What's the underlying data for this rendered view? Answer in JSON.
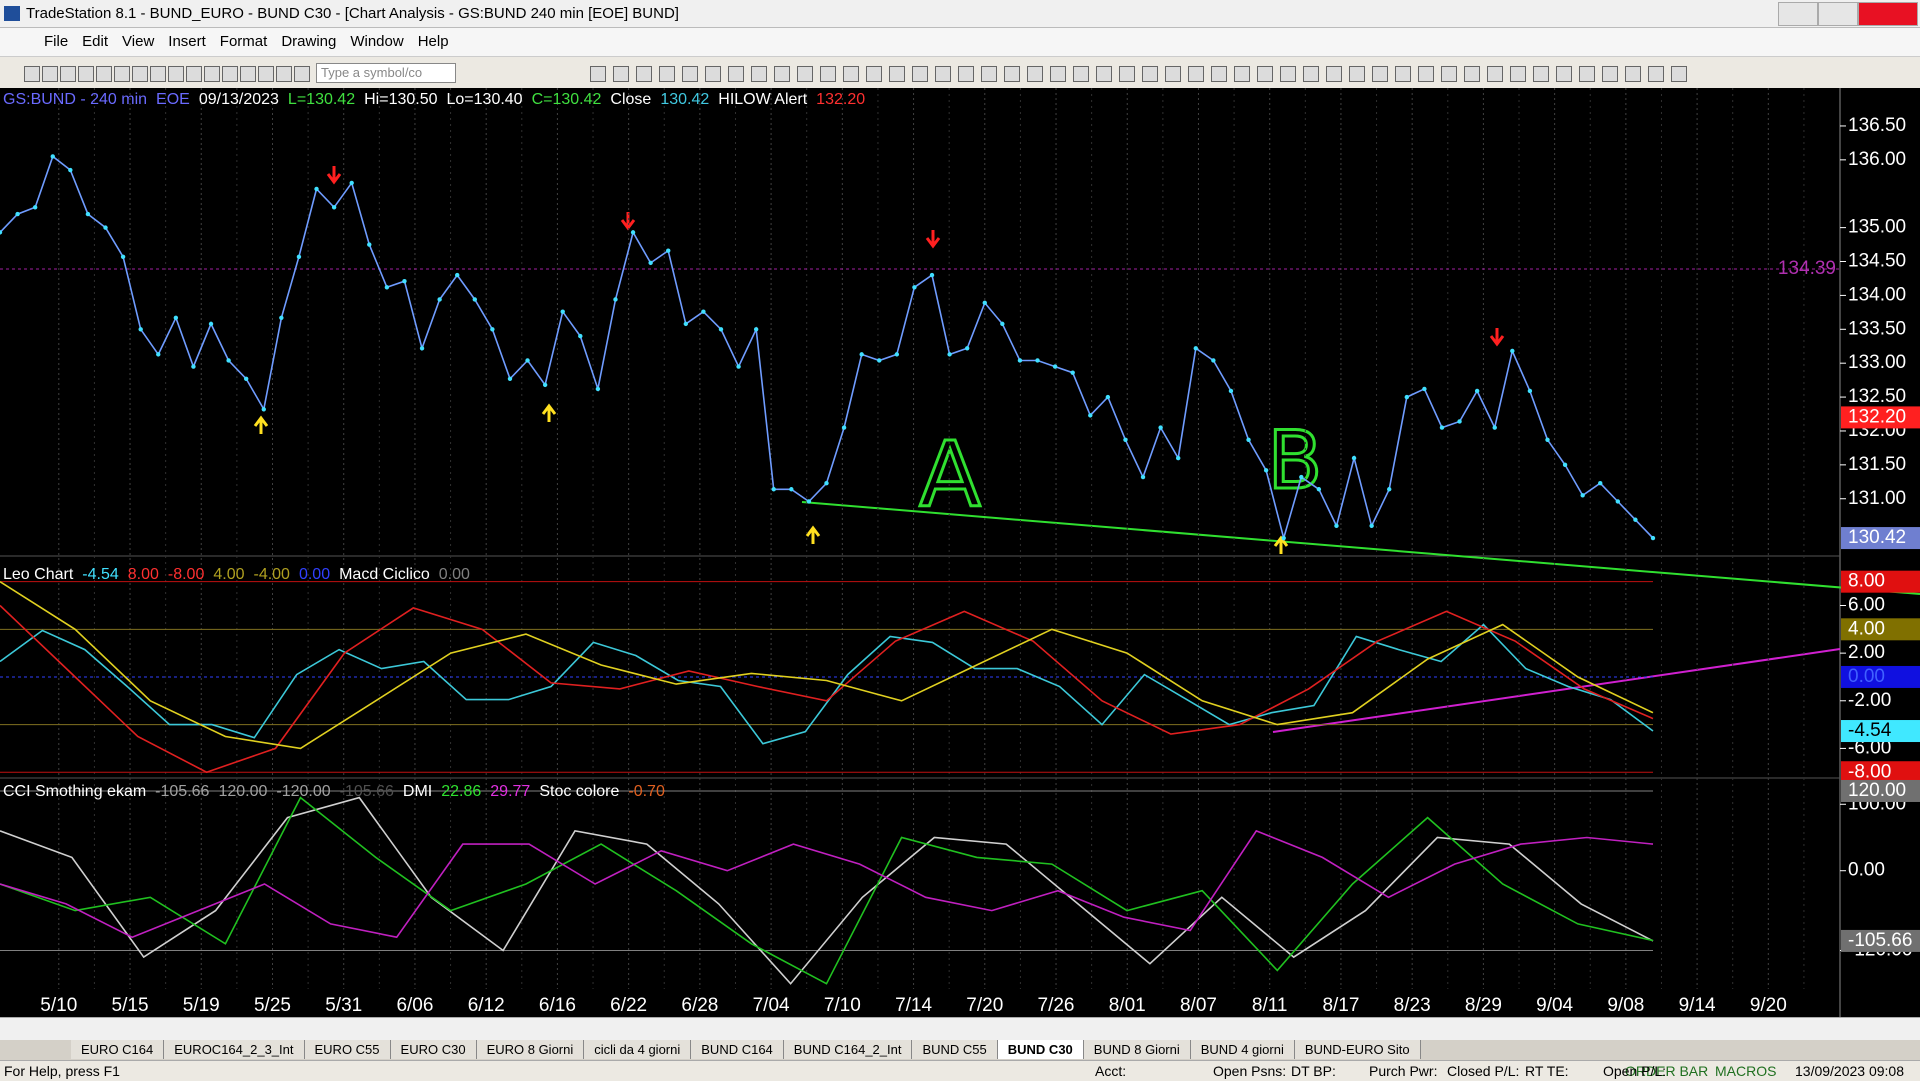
{
  "window": {
    "title": "TradeStation 8.1 - BUND_EURO - BUND  C30 - [Chart Analysis - GS:BUND  240 min  [EOE] BUND]"
  },
  "menu": [
    "File",
    "Edit",
    "View",
    "Insert",
    "Format",
    "Drawing",
    "Window",
    "Help"
  ],
  "toolbar": {
    "symbol_placeholder": "Type a symbol/co"
  },
  "chart_data": [
    {
      "type": "line",
      "header": [
        {
          "text": "GS:BUND - 240 min",
          "color": "#6a6aff"
        },
        {
          "text": "EOE",
          "color": "#6a6aff"
        },
        {
          "text": "09/13/2023",
          "color": "#ffffff"
        },
        {
          "text": "L=130.42",
          "color": "#40e040"
        },
        {
          "text": "Hi=130.50",
          "color": "#ffffff"
        },
        {
          "text": "Lo=130.40",
          "color": "#ffffff"
        },
        {
          "text": "C=130.42",
          "color": "#40e040"
        },
        {
          "text": "Close",
          "color": "#ffffff"
        },
        {
          "text": "130.42",
          "color": "#40c8e0"
        },
        {
          "text": "HILOW Alert",
          "color": "#ffffff"
        },
        {
          "text": "132.20",
          "color": "#ff3030"
        }
      ],
      "series": [
        {
          "name": "Close",
          "color": "#6f9cff",
          "dot_color": "#40e0ff",
          "values": [
            134.93,
            135.2,
            135.3,
            136.05,
            135.85,
            135.2,
            135.0,
            134.57,
            133.5,
            133.13,
            133.67,
            132.95,
            133.58,
            133.04,
            132.77,
            132.32,
            133.67,
            134.57,
            135.57,
            135.3,
            135.66,
            134.75,
            134.12,
            134.21,
            133.22,
            133.94,
            134.3,
            133.94,
            133.5,
            132.77,
            133.04,
            132.68,
            133.76,
            133.4,
            132.62,
            133.94,
            134.93,
            134.48,
            134.66,
            133.58,
            133.76,
            133.5,
            132.95,
            133.5,
            131.14,
            131.14,
            130.96,
            131.23,
            132.05,
            133.13,
            133.04,
            133.13,
            134.12,
            134.3,
            133.13,
            133.22,
            133.89,
            133.58,
            133.04,
            133.04,
            132.95,
            132.86,
            132.23,
            132.5,
            131.87,
            131.32,
            132.05,
            131.6,
            133.22,
            133.04,
            132.59,
            131.87,
            131.42,
            130.42,
            131.32,
            131.14,
            130.6,
            131.6,
            130.6,
            131.14,
            132.5,
            132.62,
            132.05,
            132.14,
            132.59,
            132.05,
            133.18,
            132.59,
            131.87,
            131.5,
            131.05,
            131.23,
            130.96,
            130.69,
            130.42
          ]
        }
      ],
      "ylim": [
        130.17,
        137.06
      ],
      "yticks": [
        {
          "value": 136.5,
          "label": "136.50"
        },
        {
          "value": 136,
          "label": "136.00"
        },
        {
          "value": 135,
          "label": "135.00"
        },
        {
          "value": 134.5,
          "label": "134.50"
        },
        {
          "value": 134,
          "label": "134.00"
        },
        {
          "value": 133.5,
          "label": "133.50"
        },
        {
          "value": 133,
          "label": "133.00"
        },
        {
          "value": 132.5,
          "label": "132.50"
        },
        {
          "value": 132,
          "label": "132.00"
        },
        {
          "value": 131.5,
          "label": "131.50"
        },
        {
          "value": 131,
          "label": "131.00"
        }
      ],
      "markers": [
        {
          "value": 134.39,
          "label": "134.39",
          "color": "#b030b0",
          "bg": "none"
        },
        {
          "value": 132.2,
          "label": "132.20",
          "color": "#ffffff",
          "bg": "#ff2020"
        },
        {
          "value": 130.42,
          "label": "130.42",
          "color": "#ffffff",
          "bg": "#6f7fd0"
        }
      ],
      "levels": [
        {
          "value": 134.39,
          "color": "#a020a0"
        }
      ],
      "annotations": [
        "A",
        "B"
      ]
    },
    {
      "type": "line",
      "header": [
        {
          "text": "Leo Chart",
          "color": "#ffffff"
        },
        {
          "text": "-4.54",
          "color": "#40e0ff"
        },
        {
          "text": "8.00",
          "color": "#ff3030"
        },
        {
          "text": "-8.00",
          "color": "#ff3030"
        },
        {
          "text": "4.00",
          "color": "#b0a020"
        },
        {
          "text": "-4.00",
          "color": "#b0a020"
        },
        {
          "text": "0.00",
          "color": "#3040ff"
        },
        {
          "text": "Macd Ciclico",
          "color": "#ffffff"
        },
        {
          "text": "0.00",
          "color": "#808080"
        }
      ],
      "series": [
        {
          "name": "Leo",
          "color": "#3cc8d8",
          "values": [
            1.3,
            3.9,
            2.3,
            -0.8,
            -4.0,
            -4.0,
            -5.1,
            0.2,
            2.3,
            0.7,
            1.3,
            -1.9,
            -1.9,
            -0.8,
            2.9,
            1.8,
            -0.3,
            -0.8,
            -5.6,
            -4.6,
            0.2,
            3.4,
            2.9,
            0.7,
            0.7,
            -0.8,
            -4.0,
            0.2,
            -1.9,
            -4.0,
            -3.0,
            -2.4,
            3.4,
            2.3,
            1.3,
            4.4,
            0.7,
            -0.8,
            -1.9,
            -4.54
          ]
        },
        {
          "name": "Ciclo",
          "color": "#e02020",
          "values": [
            6.0,
            0.5,
            -5,
            -8,
            -6,
            2,
            5.8,
            4,
            -0.5,
            -1,
            0.5,
            -0.8,
            -2,
            3,
            5.5,
            3,
            -2,
            -4.8,
            -4,
            -1,
            3,
            5.5,
            3,
            -1,
            -3.5
          ]
        },
        {
          "name": "Macd Ciclico",
          "color": "#e0d020",
          "values": [
            8,
            4,
            -2,
            -5,
            -6,
            -2,
            2,
            3.6,
            1,
            -0.6,
            0.3,
            -0.3,
            -2,
            1,
            4,
            2,
            -2,
            -4,
            -3,
            1.5,
            4.4,
            0,
            -3
          ]
        }
      ],
      "ylim": [
        -8.4,
        9.4
      ],
      "yticks": [
        {
          "value": 6,
          "label": "6.00"
        },
        {
          "value": 2,
          "label": "2.00"
        },
        {
          "value": -2,
          "label": "-2.00"
        },
        {
          "value": -6,
          "label": "-6.00"
        }
      ],
      "markers": [
        {
          "value": 8,
          "label": "8.00",
          "color": "#ffffff",
          "bg": "#e01010"
        },
        {
          "value": 4,
          "label": "4.00",
          "color": "#ffffff",
          "bg": "#807000"
        },
        {
          "value": 0,
          "label": "0.00",
          "color": "#4060ff",
          "bg": "#1010e0"
        },
        {
          "value": -4.54,
          "label": "-4.54",
          "color": "#000000",
          "bg": "#40e8ff"
        },
        {
          "value": -8,
          "label": "-8.00",
          "color": "#ffffff",
          "bg": "#e01010"
        }
      ],
      "levels": [
        {
          "value": 8,
          "color": "#c01010"
        },
        {
          "value": 4,
          "color": "#807020"
        },
        {
          "value": 0,
          "color": "#3040ff"
        },
        {
          "value": -4,
          "color": "#807020"
        },
        {
          "value": -8,
          "color": "#c01010"
        }
      ]
    },
    {
      "type": "line",
      "header": [
        {
          "text": "CCI Smothing ekam",
          "color": "#ffffff"
        },
        {
          "text": "-105.66",
          "color": "#a0a0a0"
        },
        {
          "text": "120.00",
          "color": "#a0a0a0"
        },
        {
          "text": "-120.00",
          "color": "#a0a0a0"
        },
        {
          "text": "-105.66",
          "color": "#505050"
        },
        {
          "text": "DMI",
          "color": "#ffffff"
        },
        {
          "text": "22.86",
          "color": "#30e030"
        },
        {
          "text": "29.77",
          "color": "#e030e0"
        },
        {
          "text": "Stoc colore",
          "color": "#ffffff"
        },
        {
          "text": "-0.70",
          "color": "#e06020"
        }
      ],
      "series": [
        {
          "name": "CCI",
          "color": "#d0d0d0",
          "values": [
            60,
            20,
            -130,
            -60,
            80,
            110,
            -40,
            -120,
            60,
            40,
            -50,
            -170,
            -40,
            50,
            40,
            -50,
            -140,
            -40,
            -130,
            -60,
            50,
            40,
            -50,
            -105.66
          ]
        },
        {
          "name": "DMI+",
          "color": "#20c020",
          "values": [
            -20,
            -60,
            -40,
            -110,
            110,
            20,
            -60,
            -20,
            40,
            -30,
            -110,
            -170,
            50,
            20,
            10,
            -60,
            -30,
            -150,
            -20,
            80,
            -20,
            -80,
            -105
          ]
        },
        {
          "name": "DMI-",
          "color": "#c020c0",
          "values": [
            -20,
            -50,
            -100,
            -60,
            -20,
            -80,
            -100,
            40,
            40,
            -20,
            30,
            0,
            40,
            10,
            -40,
            -60,
            -30,
            -70,
            -90,
            60,
            20,
            -40,
            10,
            40,
            50,
            40
          ]
        }
      ],
      "ylim": [
        -178,
        129
      ],
      "yticks": [
        {
          "value": 100,
          "label": "100.00"
        },
        {
          "value": 0,
          "label": "0.00"
        },
        {
          "value": -120,
          "label": "-120.00"
        }
      ],
      "markers": [
        {
          "value": 120,
          "label": "120.00",
          "color": "#ffffff",
          "bg": "#707070"
        },
        {
          "value": -105.66,
          "label": "-105.66",
          "color": "#ffffff",
          "bg": "#707070"
        }
      ],
      "levels": [
        {
          "value": 120,
          "color": "#808080"
        },
        {
          "value": -120,
          "color": "#808080"
        }
      ]
    }
  ],
  "date_axis": [
    "5/10",
    "5/15",
    "5/19",
    "5/25",
    "5/31",
    "6/06",
    "6/12",
    "6/16",
    "6/22",
    "6/28",
    "7/04",
    "7/10",
    "7/14",
    "7/20",
    "7/26",
    "8/01",
    "8/07",
    "8/11",
    "8/17",
    "8/23",
    "8/29",
    "9/04",
    "9/08",
    "9/14",
    "9/20"
  ],
  "tabs": [
    {
      "label": "EURO C164"
    },
    {
      "label": "EUROC164_2_3_Int"
    },
    {
      "label": "EURO C55"
    },
    {
      "label": "EURO C30"
    },
    {
      "label": "EURO 8 Giorni"
    },
    {
      "label": "cicli da 4 giorni"
    },
    {
      "label": "BUND C164"
    },
    {
      "label": "BUND C164_2_Int"
    },
    {
      "label": "BUND C55"
    },
    {
      "label": "BUND  C30",
      "active": true
    },
    {
      "label": "BUND 8 Giorni"
    },
    {
      "label": "BUND 4 giorni"
    },
    {
      "label": "BUND-EURO Sito"
    }
  ],
  "status": {
    "help": "For Help, press F1",
    "fields": [
      "Acct:",
      "Open Psns:",
      "DT BP:",
      "Purch Pwr:",
      "Closed P/L:",
      "RT TE:",
      "Open P/L:"
    ],
    "order_bar": "ORDER BAR",
    "macros": "MACROS",
    "datetime": "13/09/2023 09:08"
  }
}
